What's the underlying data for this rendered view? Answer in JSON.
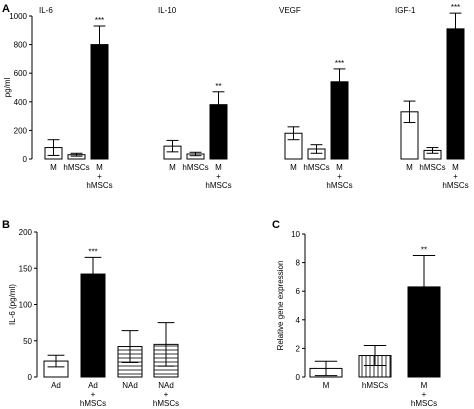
{
  "chart_data": [
    {
      "panel": "A",
      "type": "bar",
      "ylabel": "pg/ml",
      "ylim": [
        0,
        1000
      ],
      "yticks": [
        0,
        200,
        400,
        600,
        800,
        1000
      ],
      "groups": [
        {
          "title": "IL-6",
          "bars": [
            {
              "label": [
                "M"
              ],
              "value": 80,
              "error": 55,
              "fill": "open",
              "sig": ""
            },
            {
              "label": [
                "hMSCs"
              ],
              "value": 30,
              "error": 10,
              "fill": "open",
              "sig": ""
            },
            {
              "label": [
                "M",
                "+",
                "hMSCs"
              ],
              "value": 800,
              "error": 130,
              "fill": "solid",
              "sig": "***"
            }
          ]
        },
        {
          "title": "IL-10",
          "bars": [
            {
              "label": [
                "M"
              ],
              "value": 90,
              "error": 40,
              "fill": "open",
              "sig": ""
            },
            {
              "label": [
                "hMSCs"
              ],
              "value": 35,
              "error": 12,
              "fill": "open",
              "sig": ""
            },
            {
              "label": [
                "M",
                "+",
                "hMSCs"
              ],
              "value": 380,
              "error": 90,
              "fill": "solid",
              "sig": "**"
            }
          ]
        },
        {
          "title": "VEGF",
          "bars": [
            {
              "label": [
                "M"
              ],
              "value": 180,
              "error": 45,
              "fill": "open",
              "sig": ""
            },
            {
              "label": [
                "hMSCs"
              ],
              "value": 70,
              "error": 30,
              "fill": "open",
              "sig": ""
            },
            {
              "label": [
                "M",
                "+",
                "hMSCs"
              ],
              "value": 540,
              "error": 90,
              "fill": "solid",
              "sig": "***"
            }
          ]
        },
        {
          "title": "IGF-1",
          "bars": [
            {
              "label": [
                "M"
              ],
              "value": 330,
              "error": 75,
              "fill": "open",
              "sig": ""
            },
            {
              "label": [
                "hMSCs"
              ],
              "value": 60,
              "error": 20,
              "fill": "open",
              "sig": ""
            },
            {
              "label": [
                "M",
                "+",
                "hMSCs"
              ],
              "value": 910,
              "error": 110,
              "fill": "solid",
              "sig": "***"
            }
          ]
        }
      ]
    },
    {
      "panel": "B",
      "type": "bar",
      "ylabel": "IL-6 (pg/ml)",
      "ylim": [
        0,
        200
      ],
      "yticks": [
        0,
        50,
        100,
        150,
        200
      ],
      "bars": [
        {
          "label": [
            "Ad"
          ],
          "value": 22,
          "error": 8,
          "fill": "open",
          "sig": ""
        },
        {
          "label": [
            "Ad",
            "+",
            "hMSCs"
          ],
          "value": 142,
          "error": 23,
          "fill": "solid",
          "sig": "***"
        },
        {
          "label": [
            "NAd"
          ],
          "value": 42,
          "error": 22,
          "fill": "hatch-horizontal",
          "sig": ""
        },
        {
          "label": [
            "NAd",
            "+",
            "hMSCs"
          ],
          "value": 45,
          "error": 30,
          "fill": "hatch-horizontal",
          "sig": ""
        }
      ]
    },
    {
      "panel": "C",
      "type": "bar",
      "ylabel": "Relative gene expression",
      "ylim": [
        0,
        10
      ],
      "yticks": [
        0,
        2,
        4,
        6,
        8,
        10
      ],
      "bars": [
        {
          "label": [
            "M"
          ],
          "value": 0.6,
          "error": 0.5,
          "fill": "open",
          "sig": ""
        },
        {
          "label": [
            "hMSCs"
          ],
          "value": 1.5,
          "error": 0.7,
          "fill": "hatch-vertical",
          "sig": ""
        },
        {
          "label": [
            "M",
            "+",
            "hMSCs"
          ],
          "value": 6.3,
          "error": 2.2,
          "fill": "solid",
          "sig": "**"
        }
      ]
    }
  ]
}
